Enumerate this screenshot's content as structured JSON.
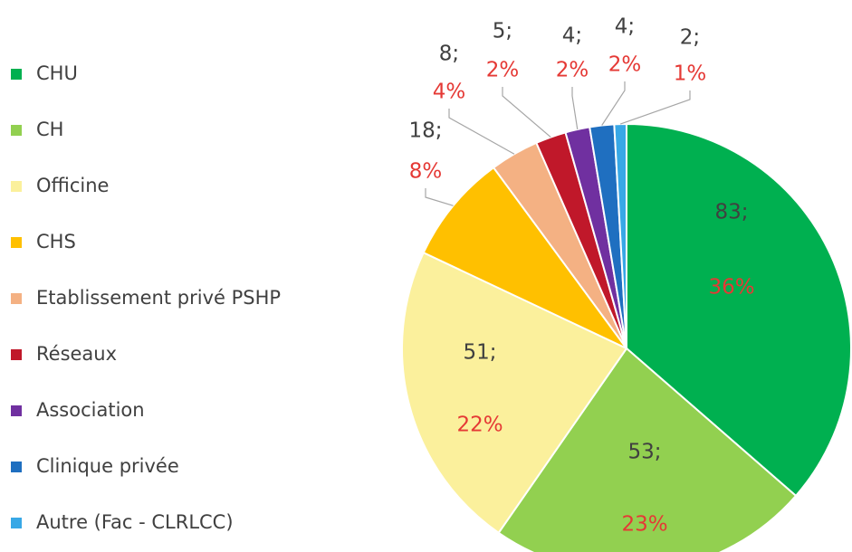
{
  "chart_data": {
    "type": "pie",
    "categories": [
      "CHU",
      "CH",
      "Officine",
      "CHS",
      "Etablissement privé PSHP",
      "Réseaux",
      "Association",
      "Clinique privée",
      "Autre (Fac - CLRLCC)"
    ],
    "values": [
      83,
      53,
      51,
      18,
      8,
      5,
      4,
      4,
      2
    ],
    "value_labels": [
      "83;",
      "53;",
      "51;",
      "18;",
      "8;",
      "5;",
      "4;",
      "4;",
      "2;"
    ],
    "percentages": [
      36,
      23,
      22,
      8,
      4,
      2,
      2,
      2,
      1
    ],
    "percentage_labels": [
      "36%",
      "23%",
      "22%",
      "8%",
      "4%",
      "2%",
      "2%",
      "2%",
      "1%"
    ],
    "colors": [
      "#00b050",
      "#92d050",
      "#fbf09c",
      "#ffc000",
      "#f4b183",
      "#c0182a",
      "#7030a0",
      "#1f6fc0",
      "#38a8e6"
    ],
    "legend": "left"
  }
}
